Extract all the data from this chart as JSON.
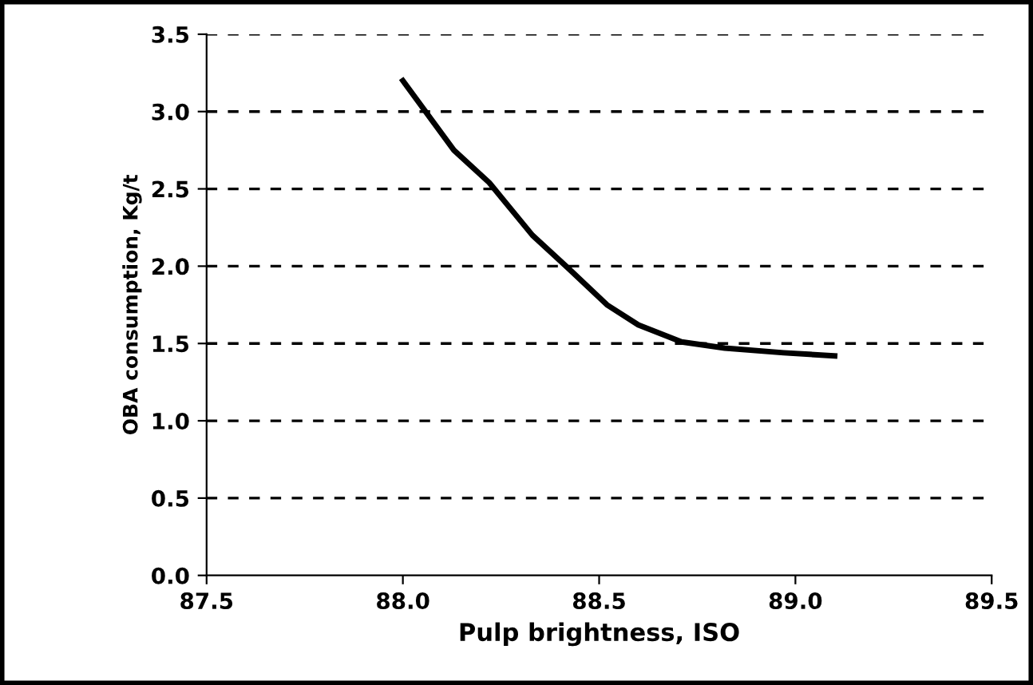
{
  "chart_data": {
    "type": "line",
    "xlabel": "Pulp brightness, ISO",
    "ylabel": "OBA consumption, Kg/t",
    "x": [
      88.0,
      88.13,
      88.22,
      88.33,
      88.42,
      88.52,
      88.6,
      88.71,
      88.82,
      88.97,
      89.1
    ],
    "series": [
      {
        "color": "#000000",
        "values": [
          3.2,
          2.75,
          2.54,
          2.2,
          1.99,
          1.75,
          1.62,
          1.51,
          1.47,
          1.44,
          1.42
        ]
      }
    ],
    "xlim": [
      87.5,
      89.5
    ],
    "xticks": [
      87.5,
      {
        "value": 88,
        "label": "88.0"
      },
      88.5,
      {
        "value": 89,
        "label": "89.0"
      },
      89.5
    ],
    "ylim": [
      0.0,
      3.5
    ],
    "yticks": [
      {
        "value": 0,
        "label": "0.0"
      },
      0.5,
      {
        "value": 1,
        "label": "1.0"
      },
      1.5,
      {
        "value": 2,
        "label": "2.0"
      },
      2.5,
      {
        "value": 3,
        "label": "3.0"
      },
      3.5
    ],
    "grid": "y",
    "marker": "none",
    "line_style": "solid",
    "legend": false
  }
}
